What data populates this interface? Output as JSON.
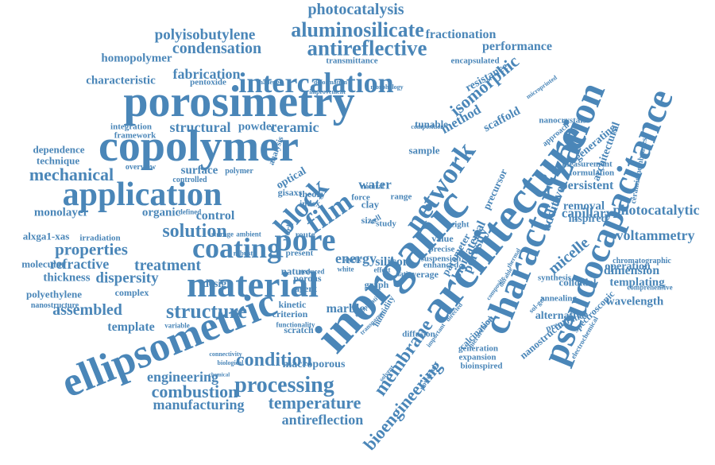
{
  "accent_color": "#4a86b8",
  "words": [
    "photocatalysis",
    "aluminosilicate",
    "polyisobutylene",
    "fractionation",
    "condensation",
    "antireflective",
    "performance",
    "homopolymer",
    "transmittance",
    "encapsulated",
    "fabrication",
    "intercalation",
    "characteristic",
    "pentoxide",
    "porosimetry",
    "isomorphic",
    "resistance",
    "copolymer",
    "structural",
    "powder",
    "ceramic",
    "tunable",
    "method",
    "scaffold",
    "dependence",
    "technique",
    "mechanical",
    "surface",
    "application",
    "optical",
    "water",
    "force",
    "range",
    "monolayer",
    "organic",
    "control",
    "film",
    "solution",
    "alxga1-xas",
    "irradiation",
    "properties",
    "coating",
    "pore",
    "refractive",
    "treatment",
    "molecular",
    "thickness",
    "dispersity",
    "material",
    "polyethylene",
    "nanostructure",
    "complex",
    "assembled",
    "structure",
    "template",
    "variable",
    "condition",
    "ellipsometric",
    "engineering",
    "combustion",
    "processing",
    "manufacturing",
    "temperature",
    "antireflection",
    "block",
    "inorganic",
    "network",
    "architecture",
    "membrane",
    "characterization",
    "pseudocapacitance",
    "bioengineering",
    "precursor",
    "biomaterial",
    "porosity",
    "parameter",
    "micelle",
    "additive",
    "capillary",
    "removal",
    "inspired",
    "persistent",
    "photocatalytic",
    "voltammetry",
    "chromatographic",
    "dimension",
    "templating",
    "operation",
    "wavelength",
    "synthesis",
    "colloidal",
    "annealing",
    "alternative",
    "preparation",
    "nanostructures",
    "calcination",
    "generation",
    "expansion",
    "bioinspired",
    "diffusion",
    "silicon",
    "energy",
    "graph",
    "average",
    "humidity",
    "kinetic",
    "criterion",
    "marble",
    "scratch",
    "macroporous",
    "design",
    "nature",
    "porous",
    "agent",
    "cyclic",
    "white",
    "ceramicmembranes",
    "comprehensive",
    "electrochemical",
    "spectroscopic",
    "generating",
    "architectural",
    "formulation",
    "measurement",
    "nanocrystals",
    "approach",
    "microprinted",
    "sample",
    "theory",
    "index",
    "size",
    "gisaxs",
    "analysis",
    "integration",
    "framework",
    "overview",
    "controlled",
    "polymer",
    "natural",
    "clay",
    "cell",
    "study",
    "work",
    "route",
    "present",
    "robust",
    "ambient",
    "defined",
    "storage",
    "reduced",
    "native",
    "effect",
    "weight",
    "value",
    "precise",
    "suspension",
    "enhanced",
    "composition",
    "morphology",
    "deformation",
    "improvement",
    "challenge",
    "connectivity",
    "biological",
    "chemical",
    "functionality",
    "comparative",
    "transparent",
    "powerful",
    "solvent",
    "important",
    "directed",
    "hierarchical",
    "composite",
    "durable",
    "thermal",
    "sol-gel",
    "interface",
    "mesoporous",
    "aluminum"
  ]
}
